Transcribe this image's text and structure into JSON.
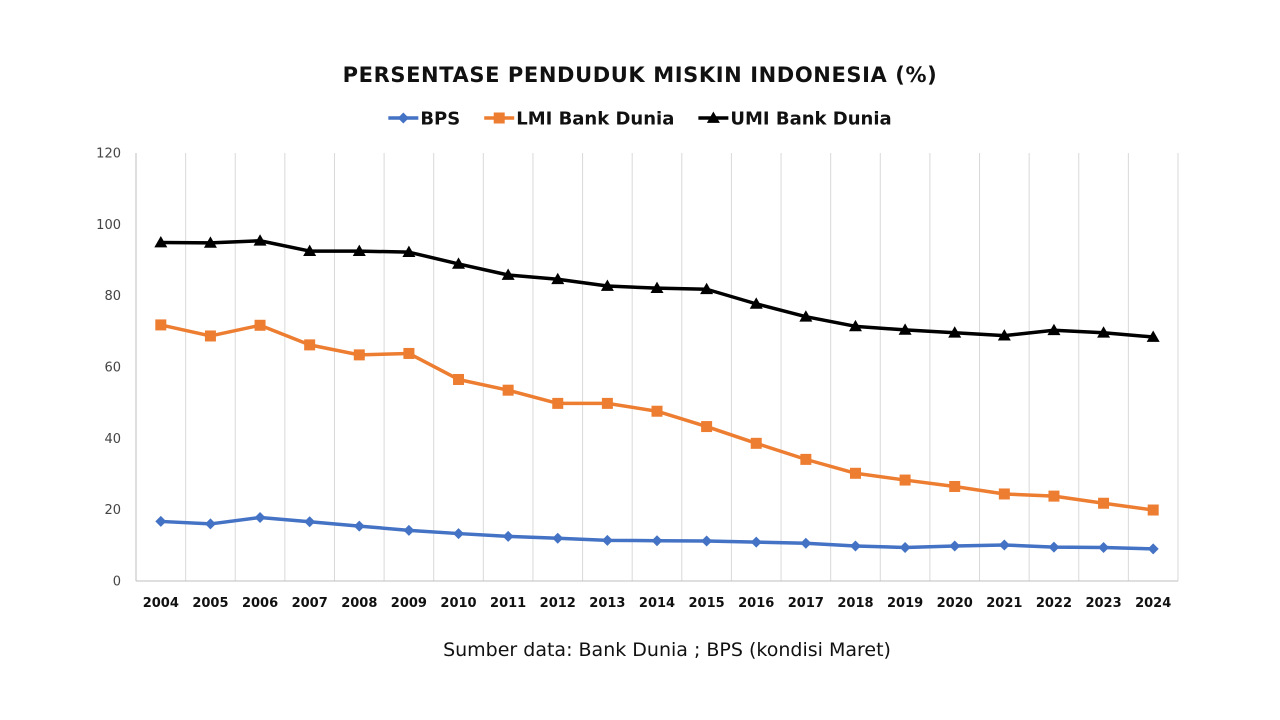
{
  "chart_data": {
    "type": "line",
    "title": "PERSENTASE PENDUDUK MISKIN INDONESIA (%)",
    "x": [
      "2004",
      "2005",
      "2006",
      "2007",
      "2008",
      "2009",
      "2010",
      "2011",
      "2012",
      "2013",
      "2014",
      "2015",
      "2016",
      "2017",
      "2018",
      "2019",
      "2020",
      "2021",
      "2022",
      "2023",
      "2024"
    ],
    "ylim": [
      0,
      120
    ],
    "yticks": [
      "0",
      "20",
      "40",
      "60",
      "80",
      "100",
      "120"
    ],
    "grid": "vertical",
    "legend_position": "top",
    "series": [
      {
        "name": "BPS",
        "color": "#4472c4",
        "marker": "diamond",
        "values": [
          16.7,
          16.0,
          17.8,
          16.6,
          15.4,
          14.2,
          13.3,
          12.5,
          12.0,
          11.4,
          11.3,
          11.2,
          10.9,
          10.6,
          9.8,
          9.4,
          9.8,
          10.1,
          9.5,
          9.4,
          9.0
        ]
      },
      {
        "name": "LMI Bank Dunia",
        "color": "#ed7d31",
        "marker": "square",
        "values": [
          71.8,
          68.7,
          71.7,
          66.2,
          63.4,
          63.8,
          56.5,
          53.5,
          49.8,
          49.8,
          47.6,
          43.3,
          38.6,
          34.1,
          30.2,
          28.3,
          26.5,
          24.4,
          23.8,
          21.8,
          19.9
        ]
      },
      {
        "name": "UMI Bank Dunia",
        "color": "#000000",
        "marker": "triangle",
        "values": [
          94.9,
          94.8,
          95.4,
          92.5,
          92.5,
          92.2,
          88.9,
          85.8,
          84.6,
          82.7,
          82.1,
          81.8,
          77.7,
          74.1,
          71.4,
          70.4,
          69.6,
          68.8,
          70.3,
          69.6,
          68.4
        ]
      }
    ],
    "source_note": "Sumber data: Bank Dunia ; BPS (kondisi Maret)"
  }
}
